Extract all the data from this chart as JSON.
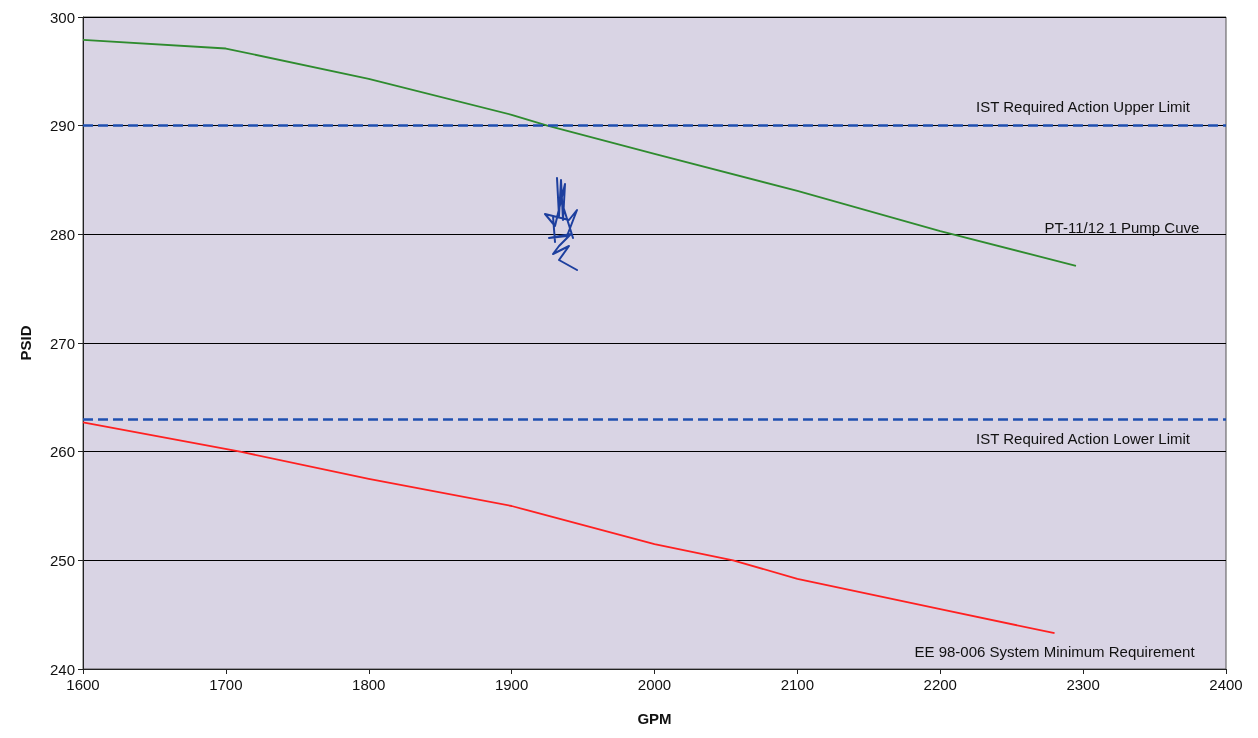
{
  "chart_data": {
    "type": "line",
    "xlabel": "GPM",
    "ylabel": "PSID",
    "xlim": [
      1600,
      2400
    ],
    "xticks": [
      1600,
      1700,
      1800,
      1900,
      2000,
      2100,
      2200,
      2300,
      2400
    ],
    "ylim": [
      240,
      300
    ],
    "yticks": [
      240,
      250,
      260,
      270,
      280,
      290,
      300
    ],
    "grid": "y",
    "marker": "none",
    "line_style": "solid",
    "legend": false,
    "series": [
      {
        "name": "PT-11/12 1 Pump Cuve",
        "color": "#2e8b2e",
        "x": [
          1600,
          1700,
          1800,
          1900,
          1925,
          2000,
          2100,
          2200,
          2295
        ],
        "values": [
          297.9,
          297.1,
          294.3,
          291,
          290,
          287.4,
          284,
          280.3,
          277.1
        ]
      },
      {
        "name": "EE 98-006 System Minimum Requirement",
        "color": "#ff2020",
        "x": [
          1600,
          1710,
          1800,
          1900,
          2000,
          2055,
          2100,
          2200,
          2280
        ],
        "values": [
          262.7,
          260,
          257.5,
          255,
          251.5,
          250,
          248.3,
          245.5,
          243.3
        ]
      }
    ],
    "ref_lines": [
      {
        "axis": "y",
        "value": 290,
        "label": "IST Required Action Upper Limit",
        "color": "#2050b0",
        "line_style": "dashed"
      },
      {
        "axis": "y",
        "value": 263,
        "label": "IST Required Action Lower Limit",
        "color": "#2050b0",
        "line_style": "dashed"
      }
    ]
  }
}
